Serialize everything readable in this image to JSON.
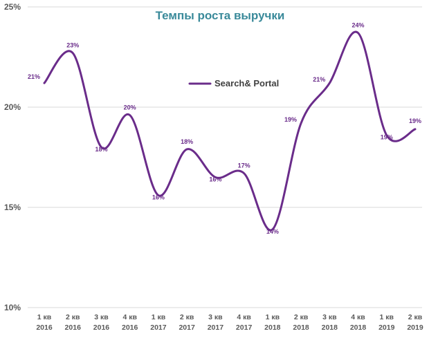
{
  "colors": {
    "series": "#6a2c8a",
    "title": "#3a8a9a",
    "grid": "#d9d9d9",
    "text": "#595959"
  },
  "chart_data": {
    "type": "line",
    "title": "Темпы роста выручки",
    "xlabel": "",
    "ylabel": "",
    "ylim": [
      10,
      25
    ],
    "yticks": [
      10,
      15,
      20,
      25
    ],
    "ytick_labels": [
      "10%",
      "15%",
      "20%",
      "25%"
    ],
    "grid": true,
    "legend": "top-center",
    "smooth": true,
    "categories": [
      {
        "quarter": "1 кв",
        "year": "2016"
      },
      {
        "quarter": "2 кв",
        "year": "2016"
      },
      {
        "quarter": "3 кв",
        "year": "2016"
      },
      {
        "quarter": "4 кв",
        "year": "2016"
      },
      {
        "quarter": "1 кв",
        "year": "2017"
      },
      {
        "quarter": "2 кв",
        "year": "2017"
      },
      {
        "quarter": "3 кв",
        "year": "2017"
      },
      {
        "quarter": "4 кв",
        "year": "2017"
      },
      {
        "quarter": "1 кв",
        "year": "2018"
      },
      {
        "quarter": "2 кв",
        "year": "2018"
      },
      {
        "quarter": "3 кв",
        "year": "2018"
      },
      {
        "quarter": "4 кв",
        "year": "2018"
      },
      {
        "quarter": "1 кв",
        "year": "2019"
      },
      {
        "quarter": "2 кв",
        "year": "2019"
      }
    ],
    "series": [
      {
        "name": "Search& Portal",
        "values": [
          21.2,
          22.7,
          18.0,
          19.6,
          15.6,
          17.9,
          16.5,
          16.7,
          13.9,
          19.2,
          21.2,
          23.7,
          18.6,
          18.9
        ],
        "labels": [
          "21%",
          "23%",
          "18%",
          "20%",
          "16%",
          "18%",
          "16%",
          "17%",
          "14%",
          "19%",
          "21%",
          "24%",
          "19%",
          "19%"
        ]
      }
    ]
  }
}
